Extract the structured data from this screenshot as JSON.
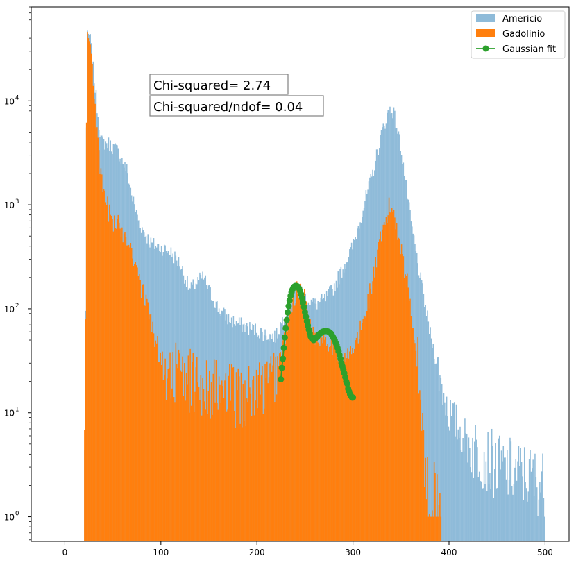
{
  "chart_data": {
    "type": "bar",
    "title": "",
    "xlabel": "",
    "ylabel": "",
    "xlim": [
      -35,
      525
    ],
    "ylim": [
      0.58,
      80000
    ],
    "yscale": "log",
    "grid": false,
    "legend_position": "top-right",
    "x_ticks": [
      0,
      100,
      200,
      300,
      400,
      500
    ],
    "x_tick_labels": [
      "0",
      "100",
      "200",
      "300",
      "400",
      "500"
    ],
    "y_ticks": [
      1,
      10,
      100,
      1000,
      10000
    ],
    "y_tick_labels": [
      {
        "base": "10",
        "exp": "0"
      },
      {
        "base": "10",
        "exp": "1"
      },
      {
        "base": "10",
        "exp": "2"
      },
      {
        "base": "10",
        "exp": "3"
      },
      {
        "base": "10",
        "exp": "4"
      }
    ],
    "bin_width": 1,
    "series": [
      {
        "name": "Americio",
        "kind": "histogram",
        "color": "#8fbbd9",
        "profile": [
          [
            20,
            1
          ],
          [
            21,
            14
          ],
          [
            23,
            40000
          ],
          [
            26,
            43000
          ],
          [
            30,
            18000
          ],
          [
            34,
            8000
          ],
          [
            38,
            4000
          ],
          [
            45,
            3900
          ],
          [
            55,
            3300
          ],
          [
            60,
            2600
          ],
          [
            65,
            2100
          ],
          [
            70,
            1200
          ],
          [
            75,
            800
          ],
          [
            80,
            600
          ],
          [
            90,
            420
          ],
          [
            100,
            390
          ],
          [
            110,
            350
          ],
          [
            120,
            270
          ],
          [
            130,
            150
          ],
          [
            140,
            190
          ],
          [
            145,
            200
          ],
          [
            150,
            150
          ],
          [
            160,
            100
          ],
          [
            170,
            80
          ],
          [
            180,
            72
          ],
          [
            190,
            66
          ],
          [
            200,
            62
          ],
          [
            210,
            56
          ],
          [
            220,
            54
          ],
          [
            230,
            95
          ],
          [
            240,
            150
          ],
          [
            245,
            160
          ],
          [
            250,
            130
          ],
          [
            260,
            110
          ],
          [
            270,
            120
          ],
          [
            280,
            160
          ],
          [
            290,
            250
          ],
          [
            300,
            400
          ],
          [
            310,
            900
          ],
          [
            320,
            1900
          ],
          [
            330,
            5000
          ],
          [
            338,
            8500
          ],
          [
            342,
            8000
          ],
          [
            350,
            3600
          ],
          [
            360,
            700
          ],
          [
            370,
            200
          ],
          [
            380,
            60
          ],
          [
            390,
            22
          ],
          [
            400,
            10
          ],
          [
            420,
            5
          ],
          [
            450,
            3
          ],
          [
            480,
            2.5
          ],
          [
            500,
            2
          ]
        ],
        "noise": 0.3,
        "range": [
          20,
          500
        ]
      },
      {
        "name": "Gadolinio",
        "kind": "histogram",
        "color": "#ff7f0e",
        "profile": [
          [
            20,
            1
          ],
          [
            21,
            14
          ],
          [
            23,
            38000
          ],
          [
            26,
            40000
          ],
          [
            30,
            15000
          ],
          [
            34,
            4000
          ],
          [
            38,
            1600
          ],
          [
            45,
            900
          ],
          [
            50,
            700
          ],
          [
            60,
            560
          ],
          [
            65,
            500
          ],
          [
            70,
            360
          ],
          [
            75,
            250
          ],
          [
            80,
            150
          ],
          [
            85,
            110
          ],
          [
            90,
            70
          ],
          [
            95,
            50
          ],
          [
            100,
            30
          ],
          [
            110,
            25
          ],
          [
            130,
            20
          ],
          [
            150,
            18
          ],
          [
            170,
            15
          ],
          [
            190,
            14
          ],
          [
            210,
            18
          ],
          [
            220,
            25
          ],
          [
            230,
            60
          ],
          [
            240,
            140
          ],
          [
            245,
            160
          ],
          [
            250,
            120
          ],
          [
            260,
            50
          ],
          [
            270,
            55
          ],
          [
            280,
            45
          ],
          [
            290,
            30
          ],
          [
            300,
            40
          ],
          [
            310,
            70
          ],
          [
            320,
            180
          ],
          [
            330,
            500
          ],
          [
            338,
            950
          ],
          [
            342,
            900
          ],
          [
            350,
            400
          ],
          [
            360,
            110
          ],
          [
            368,
            25
          ],
          [
            374,
            5
          ],
          [
            378,
            1.5
          ],
          [
            390,
            1
          ],
          [
            392,
            0.5
          ]
        ],
        "noise": 0.45,
        "range": [
          20,
          392
        ]
      },
      {
        "name": "Gaussian fit",
        "kind": "line",
        "color": "#2ca02c",
        "points": [
          [
            225,
            21
          ],
          [
            226,
            27
          ],
          [
            227,
            33
          ],
          [
            228,
            42
          ],
          [
            229,
            53
          ],
          [
            230,
            65
          ],
          [
            231,
            78
          ],
          [
            232,
            92
          ],
          [
            233,
            106
          ],
          [
            234,
            120
          ],
          [
            235,
            133
          ],
          [
            236,
            144
          ],
          [
            237,
            153
          ],
          [
            238,
            160
          ],
          [
            239,
            164
          ],
          [
            240,
            166
          ],
          [
            241,
            166
          ],
          [
            242,
            165
          ],
          [
            243,
            162
          ],
          [
            244,
            156
          ],
          [
            245,
            148
          ],
          [
            246,
            138
          ],
          [
            247,
            127
          ],
          [
            248,
            115
          ],
          [
            249,
            104
          ],
          [
            250,
            93
          ],
          [
            251,
            84
          ],
          [
            252,
            76
          ],
          [
            253,
            69
          ],
          [
            254,
            63
          ],
          [
            255,
            58
          ],
          [
            256,
            54
          ],
          [
            257,
            52
          ],
          [
            258,
            51
          ],
          [
            259,
            50
          ],
          [
            260,
            51
          ],
          [
            261,
            52
          ],
          [
            262,
            53
          ],
          [
            263,
            54
          ],
          [
            264,
            56
          ],
          [
            265,
            57
          ],
          [
            266,
            58
          ],
          [
            267,
            59
          ],
          [
            268,
            60
          ],
          [
            269,
            60.5
          ],
          [
            270,
            61
          ],
          [
            271,
            61
          ],
          [
            272,
            61
          ],
          [
            273,
            61
          ],
          [
            274,
            60.5
          ],
          [
            275,
            60
          ],
          [
            276,
            59
          ],
          [
            277,
            58
          ],
          [
            278,
            56
          ],
          [
            279,
            54
          ],
          [
            280,
            52
          ],
          [
            281,
            50
          ],
          [
            282,
            47
          ],
          [
            283,
            45
          ],
          [
            284,
            42
          ],
          [
            285,
            39
          ],
          [
            286,
            36
          ],
          [
            287,
            33
          ],
          [
            288,
            30
          ],
          [
            289,
            28
          ],
          [
            290,
            26
          ],
          [
            291,
            24
          ],
          [
            292,
            22
          ],
          [
            293,
            20
          ],
          [
            294,
            19
          ],
          [
            295,
            17
          ],
          [
            296,
            16
          ],
          [
            297,
            15
          ],
          [
            298,
            14.5
          ],
          [
            299,
            14
          ],
          [
            300,
            14
          ]
        ]
      }
    ],
    "annotations": [
      {
        "text": "Chi-squared= 2.74"
      },
      {
        "text": "Chi-squared/ndof= 0.04"
      }
    ]
  }
}
